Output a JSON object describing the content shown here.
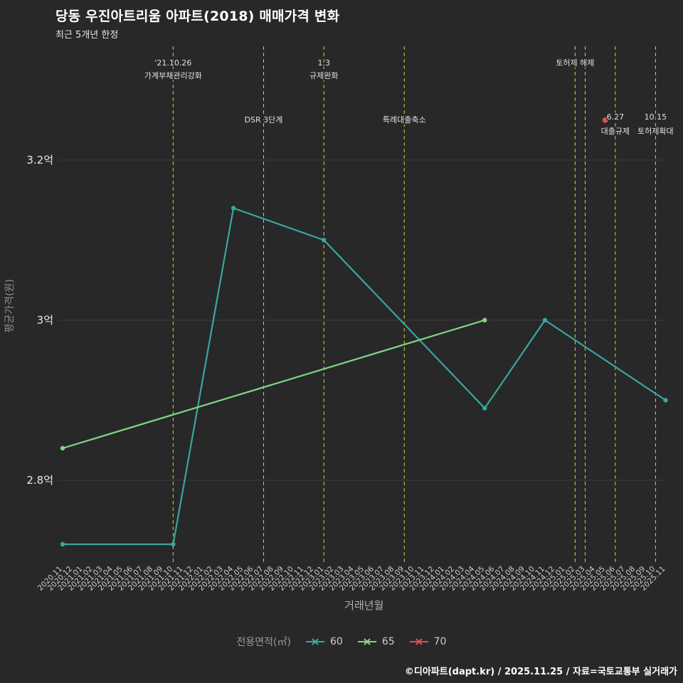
{
  "title": "당동 우진아트리움 아파트(2018) 매매가격 변화",
  "subtitle": "최근 5개년 한정",
  "footer": "©디아파트(dapt.kr) / 2025.11.25 / 자료=국토교통부 실거래가",
  "colors": {
    "background": "#282828",
    "grid": "#3c3c3c",
    "event_line": "#cdd53a",
    "text": "#e6e6e6",
    "muted_text": "#9a9a9a",
    "tick_text": "#cfcfcf",
    "series_60": "#3aa6a0",
    "series_65": "#82d682",
    "series_70": "#d94f4f"
  },
  "chart_data": {
    "type": "line",
    "title": "당동 우진아트리움 아파트(2018) 매매가격 변화",
    "subtitle": "최근 5개년 한정",
    "xlabel": "거래년월",
    "ylabel": "평균가격(원)",
    "unit": "억",
    "legend_title": "전용면적(㎡)",
    "legend_position": "bottom-center",
    "grid": "horizontal-only",
    "ylim": [
      2.66,
      3.35
    ],
    "y_ticks": [
      {
        "label": "3.2억",
        "value": 3.2
      },
      {
        "label": "3억",
        "value": 3.0
      },
      {
        "label": "2.8억",
        "value": 2.8
      }
    ],
    "x": [
      "2020.11",
      "2020.12",
      "2021.01",
      "2021.02",
      "2021.03",
      "2021.04",
      "2021.05",
      "2021.06",
      "2021.07",
      "2021.08",
      "2021.09",
      "2021.10",
      "2021.11",
      "2021.12",
      "2022.01",
      "2022.02",
      "2022.03",
      "2022.04",
      "2022.05",
      "2022.06",
      "2022.07",
      "2022.08",
      "2022.09",
      "2022.10",
      "2022.11",
      "2022.12",
      "2023.01",
      "2023.02",
      "2023.03",
      "2023.04",
      "2023.05",
      "2023.06",
      "2023.07",
      "2023.08",
      "2023.09",
      "2023.10",
      "2023.11",
      "2023.12",
      "2024.01",
      "2024.02",
      "2024.03",
      "2024.04",
      "2024.05",
      "2024.06",
      "2024.07",
      "2024.08",
      "2024.09",
      "2024.10",
      "2024.11",
      "2024.12",
      "2025.01",
      "2025.02",
      "2025.03",
      "2025.04",
      "2025.05",
      "2025.06",
      "2025.07",
      "2025.08",
      "2025.09",
      "2025.10",
      "2025.11"
    ],
    "series": [
      {
        "name": "60",
        "color": "#3aa6a0",
        "points": [
          {
            "x": "2020.11",
            "y": 2.72
          },
          {
            "x": "2021.10",
            "y": 2.72
          },
          {
            "x": "2022.04",
            "y": 3.14
          },
          {
            "x": "2023.01",
            "y": 3.1
          },
          {
            "x": "2024.05",
            "y": 2.89
          },
          {
            "x": "2024.11",
            "y": 3.0
          },
          {
            "x": "2025.11",
            "y": 2.9
          }
        ]
      },
      {
        "name": "65",
        "color": "#82d682",
        "points": [
          {
            "x": "2020.11",
            "y": 2.84
          },
          {
            "x": "2024.05",
            "y": 3.0
          }
        ]
      },
      {
        "name": "70",
        "color": "#d94f4f",
        "points": [
          {
            "x": "2025.05",
            "y": 3.25
          }
        ]
      }
    ],
    "events": [
      {
        "x": "2021.10",
        "labels": [
          "'21.10.26",
          "가계부채관리강화"
        ],
        "tier": "top"
      },
      {
        "x": "2022.07",
        "labels": [
          "DSR 3단계"
        ],
        "tier": "mid"
      },
      {
        "x": "2023.01",
        "labels": [
          "1.3",
          "규제완화"
        ],
        "tier": "top"
      },
      {
        "x": "2023.09",
        "labels": [
          "특례대출축소"
        ],
        "tier": "mid"
      },
      {
        "x": "2025.02",
        "labels": [
          "토허제 해제"
        ],
        "tier": "top"
      },
      {
        "x": "2025.03",
        "labels": [],
        "tier": "none"
      },
      {
        "x": "2025.06",
        "labels": [
          "6.27",
          "대출규제"
        ],
        "tier": "mid"
      },
      {
        "x": "2025.10",
        "labels": [
          "10.15",
          "토허제확대"
        ],
        "tier": "mid"
      }
    ]
  }
}
